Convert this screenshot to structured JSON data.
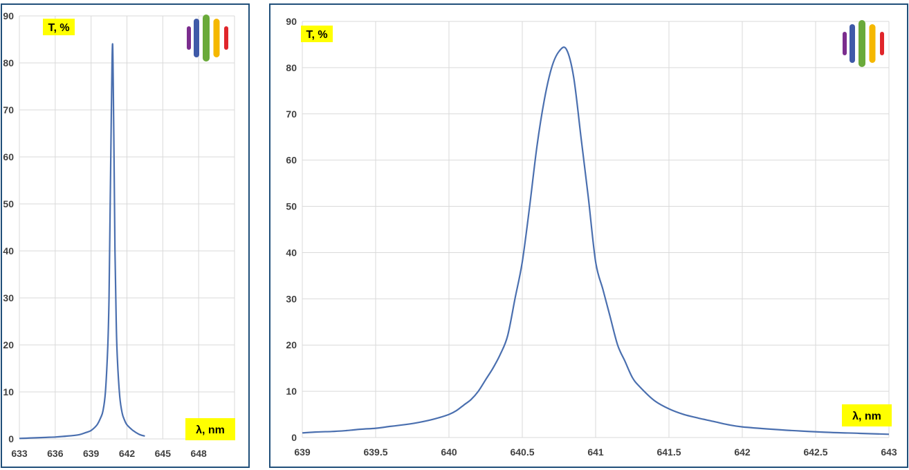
{
  "chart_data": [
    {
      "type": "line",
      "ylabel": "T, %",
      "xlabel": "λ, nm",
      "xlim": [
        633,
        651
      ],
      "ylim": [
        0,
        90
      ],
      "xticks": [
        "633",
        "636",
        "639",
        "642",
        "645",
        "648"
      ],
      "yticks": [
        "0",
        "10",
        "20",
        "30",
        "40",
        "50",
        "60",
        "70",
        "80",
        "90"
      ],
      "grid": true,
      "series": [
        {
          "color": "#4a6faf",
          "x": [
            633.0,
            634.0,
            635.0,
            636.0,
            637.0,
            638.0,
            638.5,
            639.0,
            639.5,
            639.8,
            640.0,
            640.2,
            640.4,
            640.5,
            640.6,
            640.7,
            640.8,
            640.9,
            641.0,
            641.1,
            641.2,
            641.4,
            641.6,
            641.8,
            642.0,
            642.5,
            643.0,
            643.5
          ],
          "y": [
            0.1,
            0.2,
            0.3,
            0.4,
            0.6,
            0.9,
            1.3,
            1.8,
            3.0,
            4.5,
            6.0,
            10.0,
            20.0,
            30.0,
            50.0,
            70.0,
            84.0,
            65.0,
            40.0,
            25.0,
            17.0,
            9.0,
            5.5,
            4.0,
            3.0,
            1.8,
            1.0,
            0.6
          ]
        }
      ]
    },
    {
      "type": "line",
      "ylabel": "T, %",
      "xlabel": "λ, nm",
      "xlim": [
        639,
        643
      ],
      "ylim": [
        0,
        90
      ],
      "xticks": [
        "639",
        "639.5",
        "640",
        "640.5",
        "641",
        "641.5",
        "642",
        "642.5",
        "643"
      ],
      "yticks": [
        "0",
        "10",
        "20",
        "30",
        "40",
        "50",
        "60",
        "70",
        "80",
        "90"
      ],
      "grid": true,
      "series": [
        {
          "color": "#4a6faf",
          "x": [
            639.0,
            639.1,
            639.2,
            639.3,
            639.4,
            639.5,
            639.6,
            639.7,
            639.8,
            639.9,
            640.0,
            640.05,
            640.1,
            640.15,
            640.2,
            640.25,
            640.3,
            640.35,
            640.4,
            640.45,
            640.5,
            640.55,
            640.6,
            640.65,
            640.7,
            640.75,
            640.8,
            640.85,
            640.9,
            640.95,
            641.0,
            641.05,
            641.1,
            641.15,
            641.2,
            641.25,
            641.3,
            641.4,
            641.5,
            641.6,
            641.7,
            641.8,
            641.9,
            642.0,
            642.2,
            642.4,
            642.6,
            642.8,
            643.0
          ],
          "y": [
            1.0,
            1.2,
            1.3,
            1.5,
            1.8,
            2.0,
            2.4,
            2.8,
            3.3,
            4.0,
            5.0,
            5.8,
            7.0,
            8.2,
            10.0,
            12.5,
            15.0,
            18.0,
            22.0,
            30.0,
            38.0,
            50.0,
            63.0,
            73.0,
            80.0,
            83.5,
            84.0,
            78.0,
            65.0,
            52.0,
            38.0,
            32.0,
            26.0,
            20.0,
            16.5,
            13.0,
            11.0,
            8.0,
            6.2,
            5.0,
            4.2,
            3.5,
            2.8,
            2.3,
            1.8,
            1.4,
            1.1,
            0.9,
            0.7
          ]
        }
      ]
    }
  ]
}
